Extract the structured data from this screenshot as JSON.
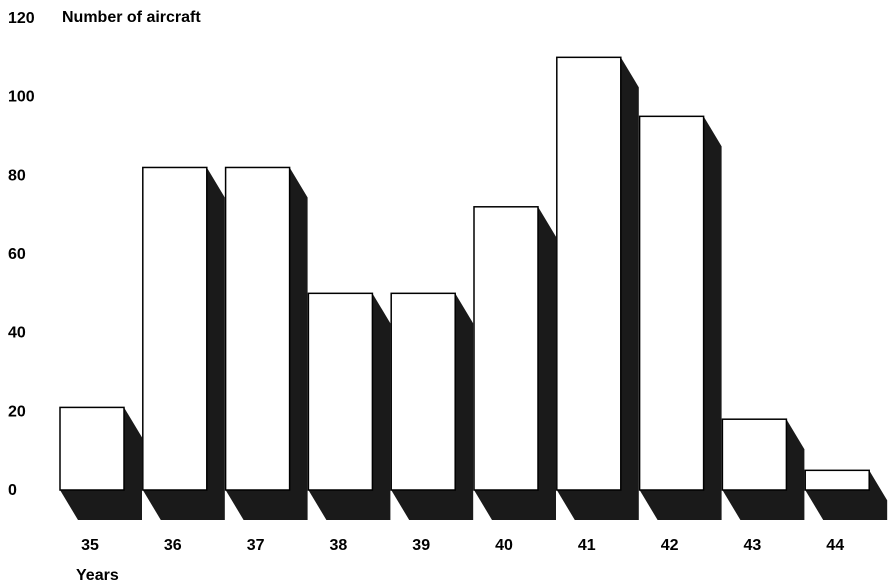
{
  "chart_data": {
    "type": "bar",
    "ylabel": "Number of aircraft",
    "xlabel": "Years",
    "categories": [
      "35",
      "36",
      "37",
      "38",
      "39",
      "40",
      "41",
      "42",
      "43",
      "44"
    ],
    "values": [
      21,
      82,
      82,
      50,
      50,
      72,
      110,
      95,
      18,
      5
    ],
    "ylim": [
      0,
      120
    ],
    "yticks": [
      0,
      20,
      40,
      60,
      80,
      100,
      120
    ],
    "grid": false,
    "style": "3d-shadow",
    "colors": {
      "bar_face": "#ffffff",
      "bar_outline": "#000000",
      "shadow": "#1a1a1a"
    }
  }
}
